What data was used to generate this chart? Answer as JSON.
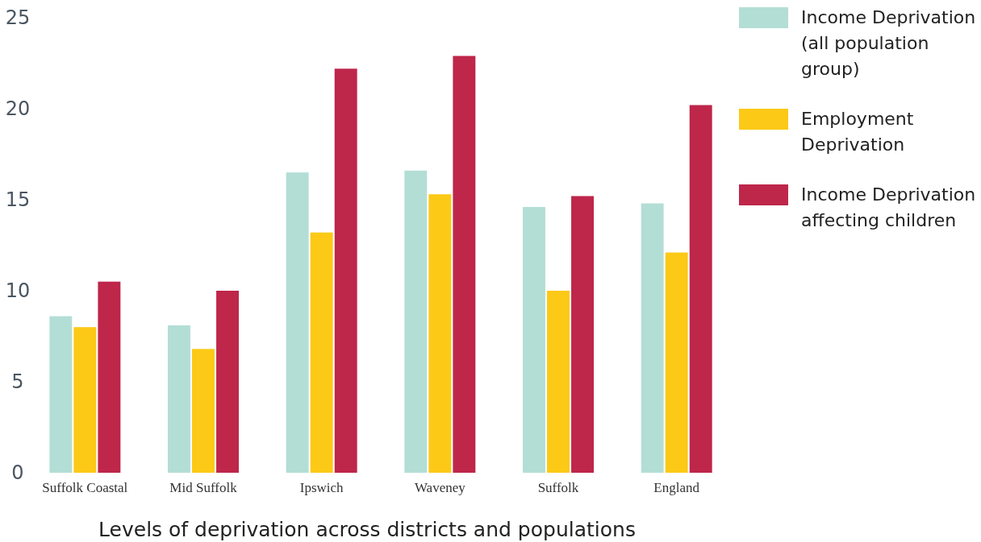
{
  "chart_data": {
    "type": "bar",
    "xlabel": "Levels of deprivation across districts and populations",
    "categories": [
      "Suffolk Coastal",
      "Mid Suffolk",
      "Ipswich",
      "Waveney",
      "Suffolk",
      "England"
    ],
    "series": [
      {
        "name": "Income Deprivation (all population group)",
        "color": "#b3ded5",
        "values": [
          8.6,
          8.1,
          16.5,
          16.6,
          14.6,
          14.8
        ]
      },
      {
        "name": "Employment Deprivation",
        "color": "#fcc917",
        "values": [
          8.0,
          6.8,
          13.2,
          15.3,
          10.0,
          12.1
        ]
      },
      {
        "name": "Income Deprivation affecting children",
        "color": "#be264a",
        "values": [
          10.5,
          10.0,
          22.2,
          22.9,
          15.2,
          20.2
        ]
      }
    ],
    "ylim": [
      0,
      25
    ],
    "yticks": [
      0,
      5,
      10,
      15,
      20,
      25
    ],
    "grid": false,
    "legend": "top right"
  }
}
